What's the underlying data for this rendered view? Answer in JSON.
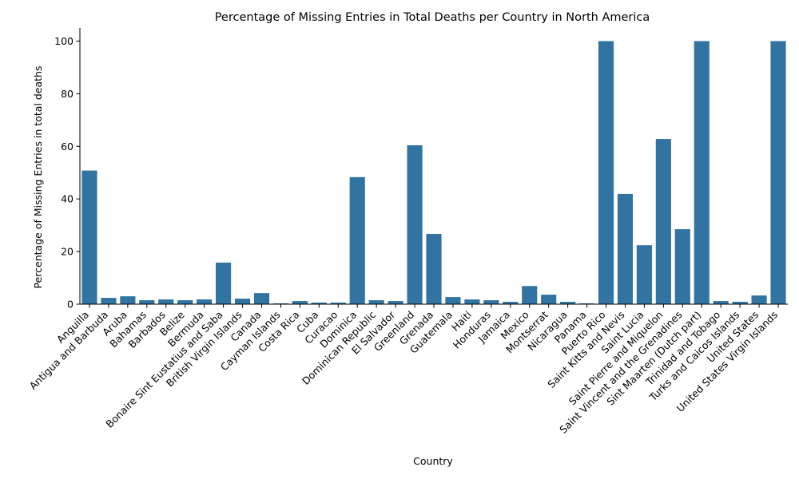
{
  "colors": {
    "bar": "#3274a1",
    "axis": "#000000",
    "background": "#ffffff"
  },
  "chart_data": {
    "type": "bar",
    "title": "Percentage of Missing Entries in Total Deaths per Country in North America",
    "xlabel": "Country",
    "ylabel": "Percentage of Missing Entries in total deaths",
    "ylim": [
      0,
      105
    ],
    "yticks": [
      0,
      20,
      40,
      60,
      80,
      100
    ],
    "grid": false,
    "categories": [
      "Anguilla",
      "Antigua and Barbuda",
      "Aruba",
      "Bahamas",
      "Barbados",
      "Belize",
      "Bermuda",
      "Bonaire Sint Eustatius and Saba",
      "British Virgin Islands",
      "Canada",
      "Cayman Islands",
      "Costa Rica",
      "Cuba",
      "Curacao",
      "Dominica",
      "Dominican Republic",
      "El Salvador",
      "Greenland",
      "Grenada",
      "Guatemala",
      "Haiti",
      "Honduras",
      "Jamaica",
      "Mexico",
      "Montserrat",
      "Nicaragua",
      "Panama",
      "Puerto Rico",
      "Saint Kitts and Nevis",
      "Saint Lucia",
      "Saint Pierre and Miquelon",
      "Saint Vincent and the Grenadines",
      "Sint Maarten (Dutch part)",
      "Trinidad and Tobago",
      "Turks and Caicos Islands",
      "United States",
      "United States Virgin Islands"
    ],
    "values": [
      50.8,
      2.4,
      3.0,
      1.5,
      1.8,
      1.5,
      1.8,
      15.8,
      2.1,
      4.2,
      0.3,
      1.2,
      0.6,
      0.6,
      48.3,
      1.5,
      1.2,
      60.4,
      26.7,
      2.7,
      1.8,
      1.5,
      0.9,
      6.9,
      3.6,
      0.9,
      0.3,
      100,
      41.9,
      22.4,
      62.8,
      28.5,
      100,
      1.2,
      0.9,
      3.3,
      100
    ]
  }
}
